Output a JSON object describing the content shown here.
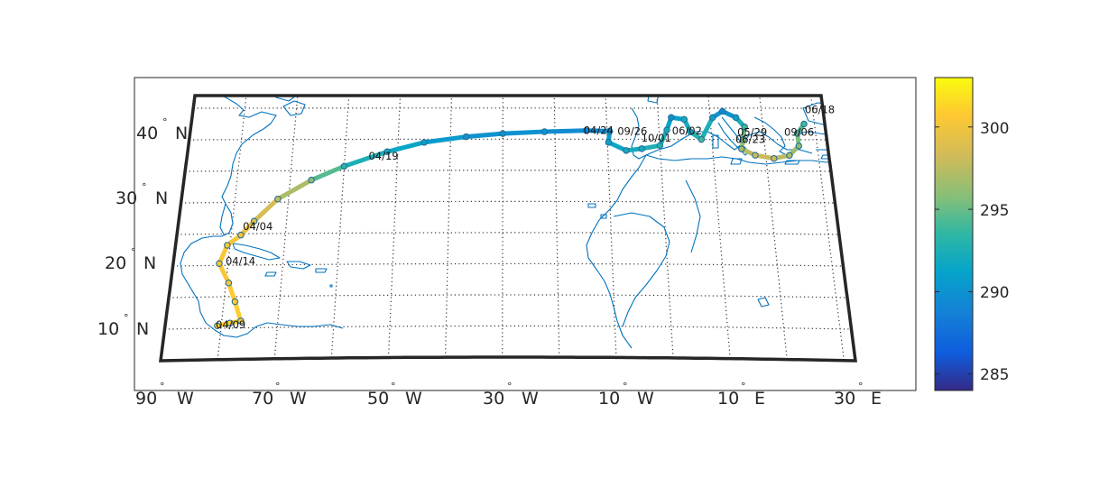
{
  "map": {
    "projection": "conic",
    "lon_range": [
      -90,
      32
    ],
    "lat_range": [
      5,
      47
    ],
    "grid": "dotted",
    "frame_color": "#262626",
    "coast_color": "#0072BD",
    "lat_labels": [
      {
        "value": 10,
        "text": "10",
        "hemi": "N"
      },
      {
        "value": 20,
        "text": "20",
        "hemi": "N"
      },
      {
        "value": 30,
        "text": "30",
        "hemi": "N"
      },
      {
        "value": 40,
        "text": "40",
        "hemi": "N"
      }
    ],
    "lon_labels": [
      {
        "value": -90,
        "text": "90",
        "hemi": "W"
      },
      {
        "value": -70,
        "text": "70",
        "hemi": "W"
      },
      {
        "value": -50,
        "text": "50",
        "hemi": "W"
      },
      {
        "value": -30,
        "text": "30",
        "hemi": "W"
      },
      {
        "value": -10,
        "text": "10",
        "hemi": "W"
      },
      {
        "value": 10,
        "text": "10",
        "hemi": "E"
      },
      {
        "value": 30,
        "text": "30",
        "hemi": "E"
      }
    ],
    "degree_symbol": "°"
  },
  "colorbar": {
    "colormap": "parula",
    "range": [
      284,
      303
    ],
    "ticks": [
      {
        "value": 285,
        "text": "285"
      },
      {
        "value": 290,
        "text": "290"
      },
      {
        "value": 295,
        "text": "295"
      },
      {
        "value": 300,
        "text": "300"
      }
    ]
  },
  "track": {
    "variable_range": [
      284,
      303
    ],
    "points": [
      {
        "lon": -80.7,
        "lat": 10.4,
        "value": 301
      },
      {
        "lon": -78.5,
        "lat": 10.8,
        "value": 301
      },
      {
        "lon": -76.6,
        "lat": 11.1,
        "value": 301
      },
      {
        "lon": -78.0,
        "lat": 14.2,
        "value": 301
      },
      {
        "lon": -79.5,
        "lat": 17.2,
        "value": 300.5
      },
      {
        "lon": -81.6,
        "lat": 20.3,
        "value": 300.5
      },
      {
        "lon": -80.5,
        "lat": 23.2,
        "value": 300.5
      },
      {
        "lon": -78.2,
        "lat": 24.8,
        "value": 300
      },
      {
        "lon": -76.0,
        "lat": 27.0,
        "value": 299
      },
      {
        "lon": -72.0,
        "lat": 30.5,
        "value": 298
      },
      {
        "lon": -66.0,
        "lat": 33.5,
        "value": 296
      },
      {
        "lon": -60.0,
        "lat": 35.7,
        "value": 293
      },
      {
        "lon": -52.0,
        "lat": 38.0,
        "value": 292
      },
      {
        "lon": -45.0,
        "lat": 39.5,
        "value": 291
      },
      {
        "lon": -37.0,
        "lat": 40.4,
        "value": 290
      },
      {
        "lon": -30.0,
        "lat": 40.9,
        "value": 290
      },
      {
        "lon": -22.0,
        "lat": 41.2,
        "value": 290
      },
      {
        "lon": -14.0,
        "lat": 41.4,
        "value": 289
      },
      {
        "lon": -9.5,
        "lat": 41.3,
        "value": 290
      },
      {
        "lon": -9.8,
        "lat": 39.5,
        "value": 291
      },
      {
        "lon": -6.5,
        "lat": 38.2,
        "value": 292
      },
      {
        "lon": -3.5,
        "lat": 38.5,
        "value": 292
      },
      {
        "lon": 0.0,
        "lat": 39.0,
        "value": 293
      },
      {
        "lon": 1.5,
        "lat": 41.5,
        "value": 292
      },
      {
        "lon": 2.5,
        "lat": 43.5,
        "value": 290
      },
      {
        "lon": 5.0,
        "lat": 43.2,
        "value": 292
      },
      {
        "lon": 6.0,
        "lat": 41.2,
        "value": 292
      },
      {
        "lon": 8.0,
        "lat": 40.0,
        "value": 294
      },
      {
        "lon": 10.5,
        "lat": 43.5,
        "value": 291
      },
      {
        "lon": 12.5,
        "lat": 44.5,
        "value": 289
      },
      {
        "lon": 15.0,
        "lat": 43.5,
        "value": 291
      },
      {
        "lon": 16.5,
        "lat": 42.0,
        "value": 294
      },
      {
        "lon": 16.0,
        "lat": 40.0,
        "value": 296
      },
      {
        "lon": 15.5,
        "lat": 38.5,
        "value": 297
      },
      {
        "lon": 18.0,
        "lat": 37.5,
        "value": 298
      },
      {
        "lon": 21.5,
        "lat": 37.0,
        "value": 298
      },
      {
        "lon": 24.5,
        "lat": 37.5,
        "value": 297
      },
      {
        "lon": 26.5,
        "lat": 39.0,
        "value": 296
      },
      {
        "lon": 26.5,
        "lat": 41.0,
        "value": 295
      },
      {
        "lon": 28.0,
        "lat": 42.5,
        "value": 294
      }
    ]
  },
  "date_labels": [
    {
      "text": "04/09",
      "lon": -81.0,
      "lat": 10.6
    },
    {
      "text": "04/14",
      "lon": -80.5,
      "lat": 20.7
    },
    {
      "text": "04/04",
      "lon": -78.0,
      "lat": 26.2
    },
    {
      "text": "04/19",
      "lon": -55.5,
      "lat": 37.3
    },
    {
      "text": "04/24",
      "lon": -14.5,
      "lat": 41.4
    },
    {
      "text": "09/26",
      "lon": -8.0,
      "lat": 41.3
    },
    {
      "text": "10/01",
      "lon": -3.5,
      "lat": 40.2
    },
    {
      "text": "06/02",
      "lon": 2.5,
      "lat": 41.4
    },
    {
      "text": "05/29",
      "lon": 15.0,
      "lat": 41.2
    },
    {
      "text": "06/23",
      "lon": 14.5,
      "lat": 40.0
    },
    {
      "text": "06/18",
      "lon": 28.5,
      "lat": 44.8
    },
    {
      "text": "09/06",
      "lon": 24.0,
      "lat": 41.2
    }
  ]
}
